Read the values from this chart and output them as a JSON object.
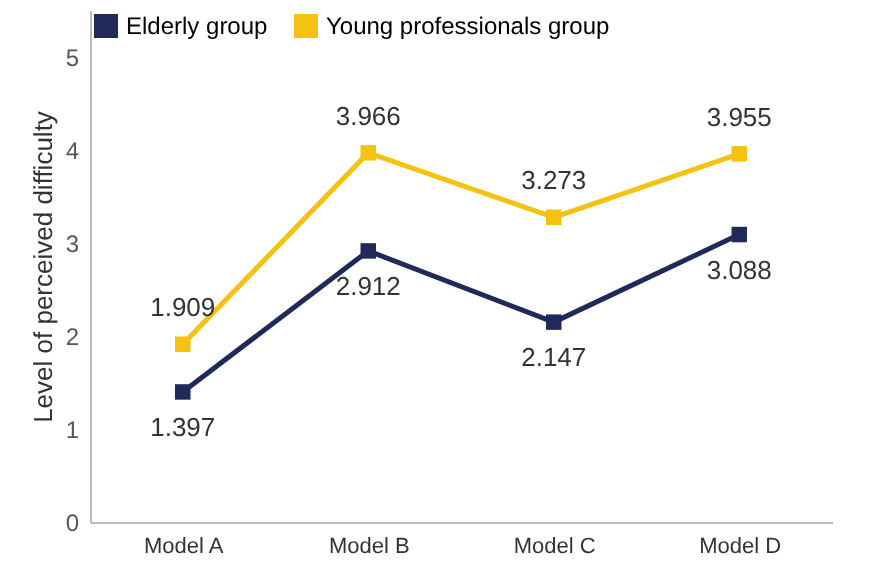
{
  "chart_data": {
    "type": "line",
    "ylabel": "Level of perceived difficulty",
    "categories": [
      "Model A",
      "Model B",
      "Model C",
      "Model D"
    ],
    "series": [
      {
        "name": "Elderly group",
        "color": "#1f2a5a",
        "values": [
          1.397,
          2.912,
          2.147,
          3.088
        ]
      },
      {
        "name": "Young professionals group",
        "color": "#f5c211",
        "values": [
          1.909,
          3.966,
          3.273,
          3.955
        ]
      }
    ],
    "ylim": [
      0,
      5.5
    ],
    "yticks": [
      0,
      1,
      2,
      3,
      4,
      5
    ],
    "grid": false,
    "legend": "top left",
    "marker": "square",
    "line_style": "solid",
    "data_labels": true
  }
}
